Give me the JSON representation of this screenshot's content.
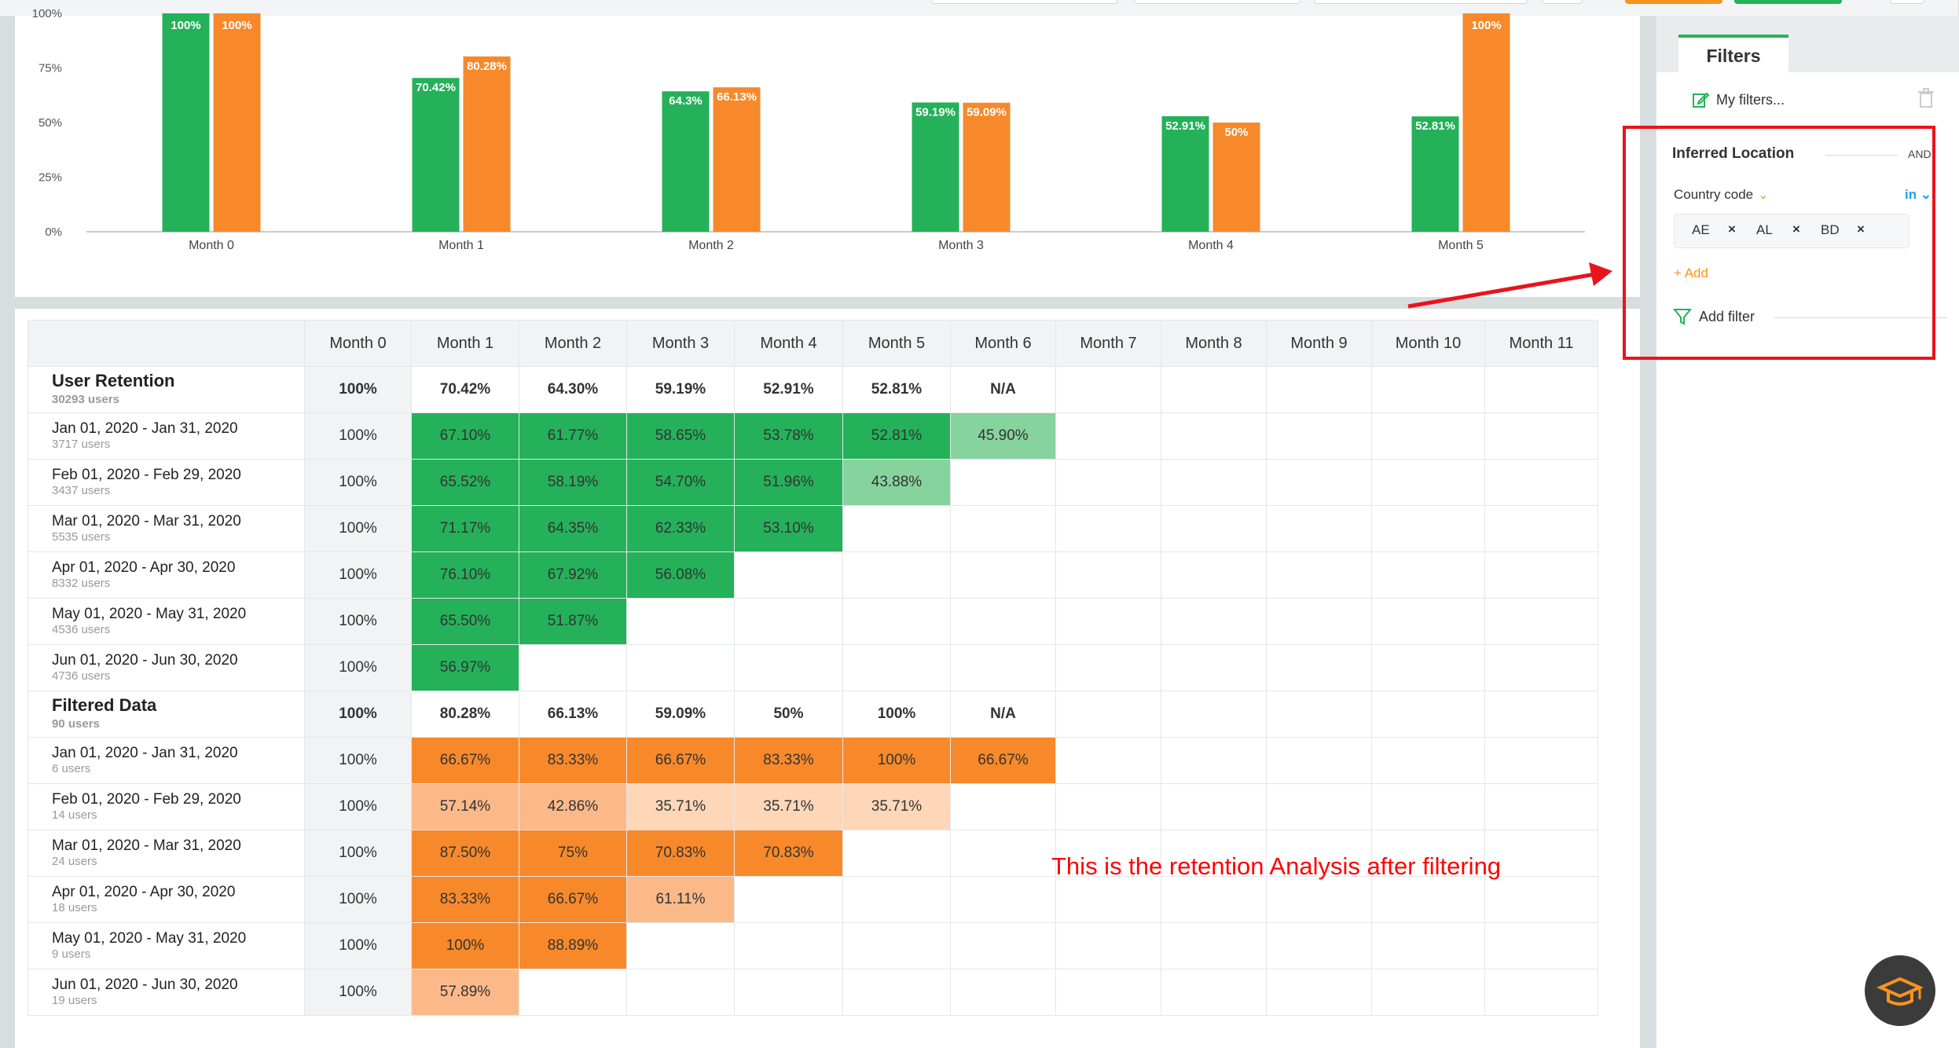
{
  "chart_data": {
    "type": "bar",
    "categories": [
      "Month 0",
      "Month 1",
      "Month 2",
      "Month 3",
      "Month 4",
      "Month 5"
    ],
    "series": [
      {
        "color": "#24b15a",
        "values": [
          100,
          70.42,
          64.3,
          59.19,
          52.91,
          52.81
        ],
        "labels": [
          "100%",
          "70.42%",
          "64.3%",
          "59.19%",
          "52.91%",
          "52.81%"
        ]
      },
      {
        "color": "#f7892a",
        "values": [
          100,
          80.28,
          66.13,
          59.09,
          50,
          100
        ],
        "labels": [
          "100%",
          "80.28%",
          "66.13%",
          "59.09%",
          "50%",
          "100%"
        ]
      }
    ],
    "yticks": [
      "0%",
      "25%",
      "50%",
      "75%",
      "100%"
    ],
    "ylim": [
      0,
      100
    ]
  },
  "table": {
    "columns": [
      "Month 0",
      "Month 1",
      "Month 2",
      "Month 3",
      "Month 4",
      "Month 5",
      "Month 6",
      "Month 7",
      "Month 8",
      "Month 9",
      "Month 10",
      "Month 11"
    ],
    "rows": [
      {
        "kind": "sum",
        "label": "User Retention",
        "sub": "30293 users",
        "cells": [
          "100%",
          "70.42%",
          "64.30%",
          "59.19%",
          "52.91%",
          "52.81%",
          "N/A",
          "",
          "",
          "",
          "",
          ""
        ],
        "shade": [
          "",
          "",
          "",
          "",
          "",
          "",
          "",
          "",
          "",
          "",
          "",
          ""
        ]
      },
      {
        "kind": "row",
        "label": "Jan 01, 2020 - Jan 31, 2020",
        "sub": "3717 users",
        "cells": [
          "100%",
          "67.10%",
          "61.77%",
          "58.65%",
          "53.78%",
          "52.81%",
          "45.90%",
          "",
          "",
          "",
          "",
          ""
        ],
        "shade": [
          "",
          "g1",
          "g1",
          "g1",
          "g1",
          "g1",
          "g2",
          "",
          "",
          "",
          "",
          ""
        ]
      },
      {
        "kind": "row",
        "label": "Feb 01, 2020 - Feb 29, 2020",
        "sub": "3437 users",
        "cells": [
          "100%",
          "65.52%",
          "58.19%",
          "54.70%",
          "51.96%",
          "43.88%",
          "",
          "",
          "",
          "",
          "",
          ""
        ],
        "shade": [
          "",
          "g1",
          "g1",
          "g1",
          "g1",
          "g2",
          "",
          "",
          "",
          "",
          "",
          ""
        ]
      },
      {
        "kind": "row",
        "label": "Mar 01, 2020 - Mar 31, 2020",
        "sub": "5535 users",
        "cells": [
          "100%",
          "71.17%",
          "64.35%",
          "62.33%",
          "53.10%",
          "",
          "",
          "",
          "",
          "",
          "",
          ""
        ],
        "shade": [
          "",
          "g1",
          "g1",
          "g1",
          "g1",
          "",
          "",
          "",
          "",
          "",
          "",
          ""
        ]
      },
      {
        "kind": "row",
        "label": "Apr 01, 2020 - Apr 30, 2020",
        "sub": "8332 users",
        "cells": [
          "100%",
          "76.10%",
          "67.92%",
          "56.08%",
          "",
          "",
          "",
          "",
          "",
          "",
          "",
          ""
        ],
        "shade": [
          "",
          "g1",
          "g1",
          "g1",
          "",
          "",
          "",
          "",
          "",
          "",
          "",
          ""
        ]
      },
      {
        "kind": "row",
        "label": "May 01, 2020 - May 31, 2020",
        "sub": "4536 users",
        "cells": [
          "100%",
          "65.50%",
          "51.87%",
          "",
          "",
          "",
          "",
          "",
          "",
          "",
          "",
          ""
        ],
        "shade": [
          "",
          "g1",
          "g1",
          "",
          "",
          "",
          "",
          "",
          "",
          "",
          "",
          ""
        ]
      },
      {
        "kind": "row",
        "label": "Jun 01, 2020 - Jun 30, 2020",
        "sub": "4736 users",
        "cells": [
          "100%",
          "56.97%",
          "",
          "",
          "",
          "",
          "",
          "",
          "",
          "",
          "",
          ""
        ],
        "shade": [
          "",
          "g1",
          "",
          "",
          "",
          "",
          "",
          "",
          "",
          "",
          "",
          ""
        ]
      },
      {
        "kind": "sum",
        "label": "Filtered Data",
        "sub": "90 users",
        "cells": [
          "100%",
          "80.28%",
          "66.13%",
          "59.09%",
          "50%",
          "100%",
          "N/A",
          "",
          "",
          "",
          "",
          ""
        ],
        "shade": [
          "",
          "",
          "",
          "",
          "",
          "",
          "",
          "",
          "",
          "",
          "",
          ""
        ]
      },
      {
        "kind": "row",
        "label": "Jan 01, 2020 - Jan 31, 2020",
        "sub": "6 users",
        "cells": [
          "100%",
          "66.67%",
          "83.33%",
          "66.67%",
          "83.33%",
          "100%",
          "66.67%",
          "",
          "",
          "",
          "",
          ""
        ],
        "shade": [
          "",
          "o1",
          "o1",
          "o1",
          "o1",
          "o1",
          "o1",
          "",
          "",
          "",
          "",
          ""
        ]
      },
      {
        "kind": "row",
        "label": "Feb 01, 2020 - Feb 29, 2020",
        "sub": "14 users",
        "cells": [
          "100%",
          "57.14%",
          "42.86%",
          "35.71%",
          "35.71%",
          "35.71%",
          "",
          "",
          "",
          "",
          "",
          ""
        ],
        "shade": [
          "",
          "o2",
          "o2",
          "o3",
          "o3",
          "o3",
          "",
          "",
          "",
          "",
          "",
          ""
        ]
      },
      {
        "kind": "row",
        "label": "Mar 01, 2020 - Mar 31, 2020",
        "sub": "24 users",
        "cells": [
          "100%",
          "87.50%",
          "75%",
          "70.83%",
          "70.83%",
          "",
          "",
          "",
          "",
          "",
          "",
          ""
        ],
        "shade": [
          "",
          "o1",
          "o1",
          "o1",
          "o1",
          "",
          "",
          "",
          "",
          "",
          "",
          ""
        ]
      },
      {
        "kind": "row",
        "label": "Apr 01, 2020 - Apr 30, 2020",
        "sub": "18 users",
        "cells": [
          "100%",
          "83.33%",
          "66.67%",
          "61.11%",
          "",
          "",
          "",
          "",
          "",
          "",
          "",
          ""
        ],
        "shade": [
          "",
          "o1",
          "o1",
          "o2",
          "",
          "",
          "",
          "",
          "",
          "",
          "",
          ""
        ]
      },
      {
        "kind": "row",
        "label": "May 01, 2020 - May 31, 2020",
        "sub": "9 users",
        "cells": [
          "100%",
          "100%",
          "88.89%",
          "",
          "",
          "",
          "",
          "",
          "",
          "",
          "",
          ""
        ],
        "shade": [
          "",
          "o1",
          "o1",
          "",
          "",
          "",
          "",
          "",
          "",
          "",
          "",
          ""
        ]
      },
      {
        "kind": "row",
        "label": "Jun 01, 2020 - Jun 30, 2020",
        "sub": "19 users",
        "cells": [
          "100%",
          "57.89%",
          "",
          "",
          "",
          "",
          "",
          "",
          "",
          "",
          "",
          ""
        ],
        "shade": [
          "",
          "o2",
          "",
          "",
          "",
          "",
          "",
          "",
          "",
          "",
          "",
          ""
        ]
      }
    ]
  },
  "annotation": "This is the retention Analysis after filtering",
  "filters": {
    "tab_label": "Filters",
    "my_filters": "My filters...",
    "group_title": "Inferred Location",
    "group_operator": "AND",
    "field": "Country code",
    "operator": "in",
    "values": [
      "AE",
      "AL",
      "BD"
    ],
    "add_label": "+ Add",
    "add_filter_label": "Add filter"
  },
  "colors": {
    "green": "#24b15a",
    "orange": "#f7892a",
    "annotation": "#ff0000"
  }
}
